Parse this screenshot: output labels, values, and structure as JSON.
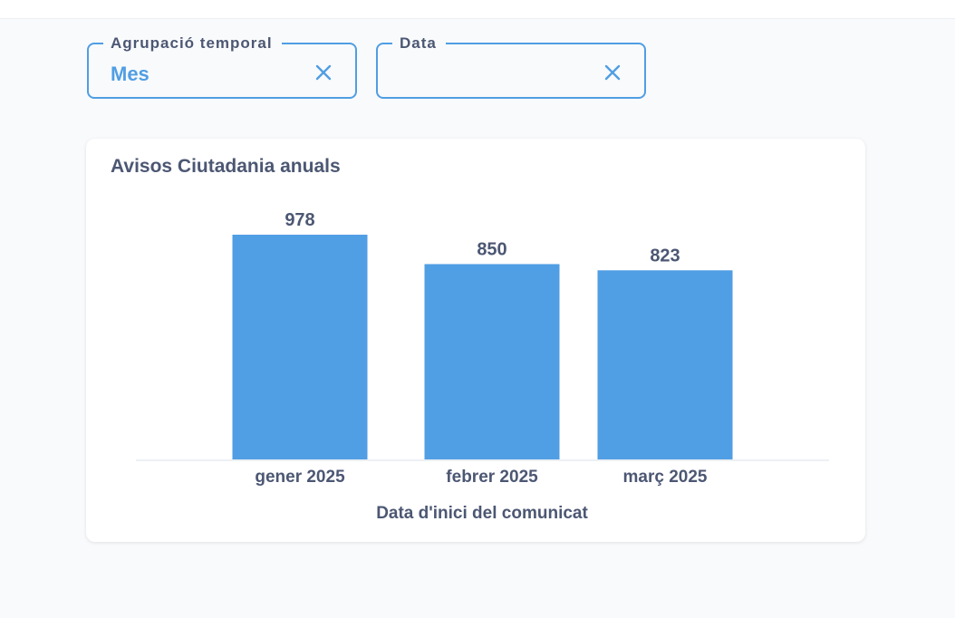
{
  "filters": {
    "grouping": {
      "label": "Agrupació temporal",
      "value": "Mes"
    },
    "date": {
      "label": "Data",
      "value": ""
    }
  },
  "card": {
    "title": "Avisos Ciutadania anuals"
  },
  "colors": {
    "accent": "#509ee3",
    "text": "#4c5773",
    "axis": "#edf0f3"
  },
  "chart_data": {
    "type": "bar",
    "title": "Avisos Ciutadania anuals",
    "categories": [
      "gener 2025",
      "febrer 2025",
      "març 2025"
    ],
    "series": [
      {
        "values": [
          978,
          850,
          823
        ]
      }
    ],
    "xlabel": "Data d'inici del comunicat",
    "ylabel": "",
    "ylim": [
      0,
      978
    ],
    "grid": false,
    "legend": "none"
  }
}
